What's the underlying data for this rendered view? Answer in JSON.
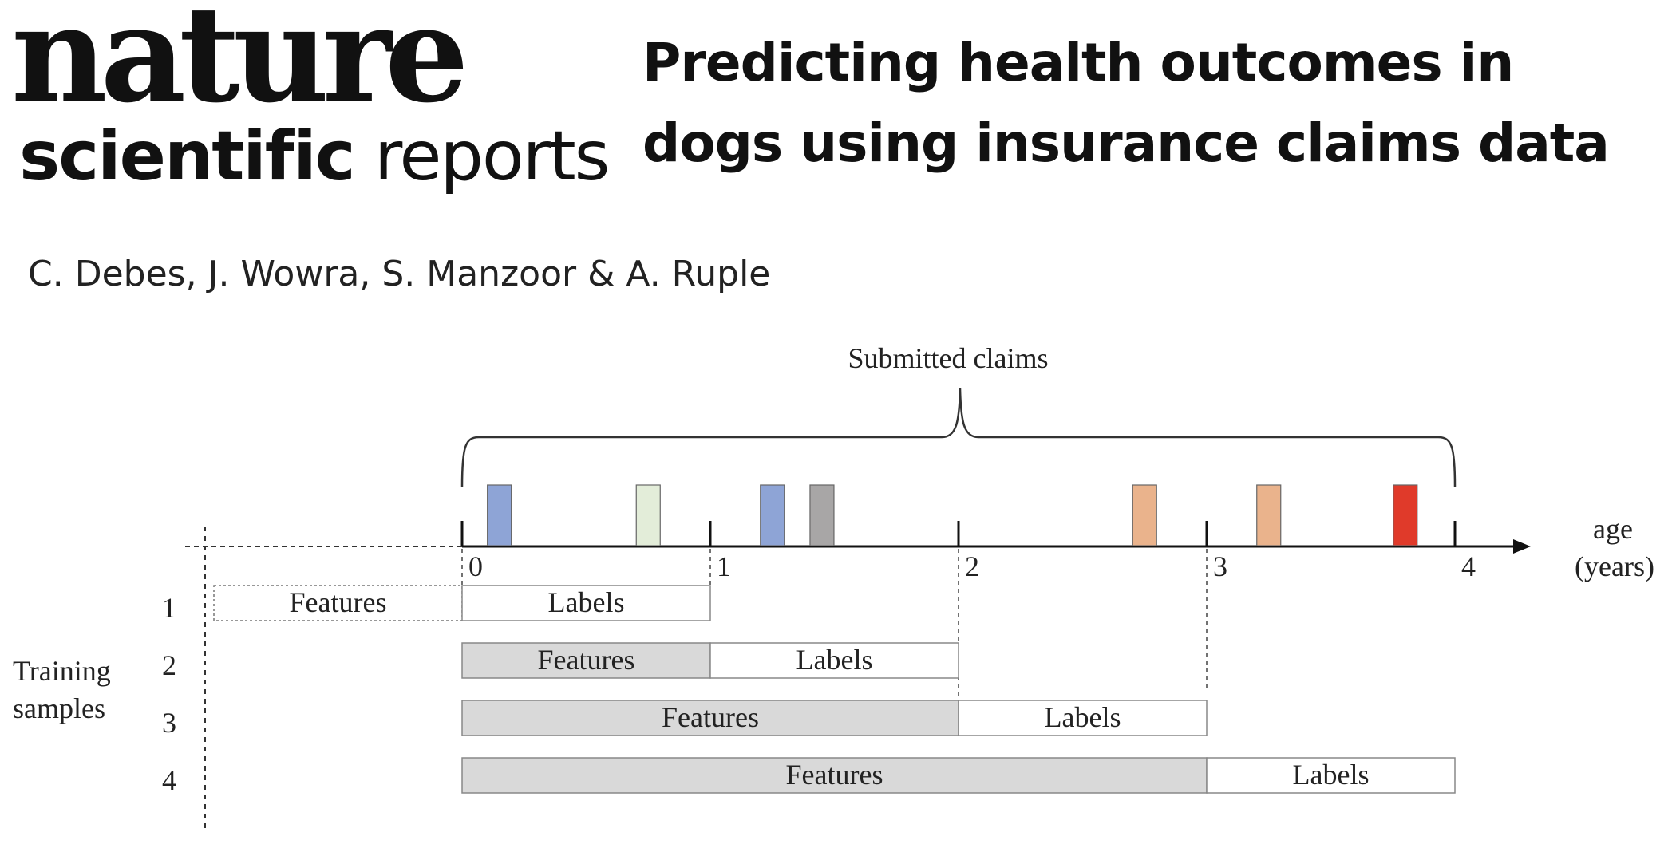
{
  "journal": {
    "nature": "nature",
    "scientific": "scientific",
    "reports": "reports"
  },
  "title": "Predicting health outcomes in dogs using insurance claims data",
  "authors": "C. Debes, J. Wowra, S. Manzoor & A. Ruple",
  "diagram": {
    "brace_label": "Submitted claims",
    "axis_label_1": "age",
    "axis_label_2": "(years)",
    "ticks": [
      "0",
      "1",
      "2",
      "3",
      "4"
    ],
    "group_label_1": "Training",
    "group_label_2": "samples",
    "feature_label": "Features",
    "label_label": "Labels",
    "samples": [
      {
        "id": "1",
        "features": [
          -1,
          0
        ],
        "labels": [
          0,
          1
        ]
      },
      {
        "id": "2",
        "features": [
          0,
          1
        ],
        "labels": [
          1,
          2
        ]
      },
      {
        "id": "3",
        "features": [
          0,
          2
        ],
        "labels": [
          2,
          3
        ]
      },
      {
        "id": "4",
        "features": [
          0,
          3
        ],
        "labels": [
          3,
          4
        ]
      }
    ],
    "claims": [
      {
        "age": 0.15,
        "color": "#8ea4d6"
      },
      {
        "age": 0.75,
        "color": "#e3edd9"
      },
      {
        "age": 1.25,
        "color": "#8ea4d6"
      },
      {
        "age": 1.45,
        "color": "#a8a6a6"
      },
      {
        "age": 2.75,
        "color": "#eab38c"
      },
      {
        "age": 3.25,
        "color": "#eab38c"
      },
      {
        "age": 3.8,
        "color": "#e03a2a"
      }
    ],
    "colors": {
      "feature_fill": "#d9d9d9",
      "label_fill": "#ffffff",
      "axis": "#111111"
    }
  }
}
